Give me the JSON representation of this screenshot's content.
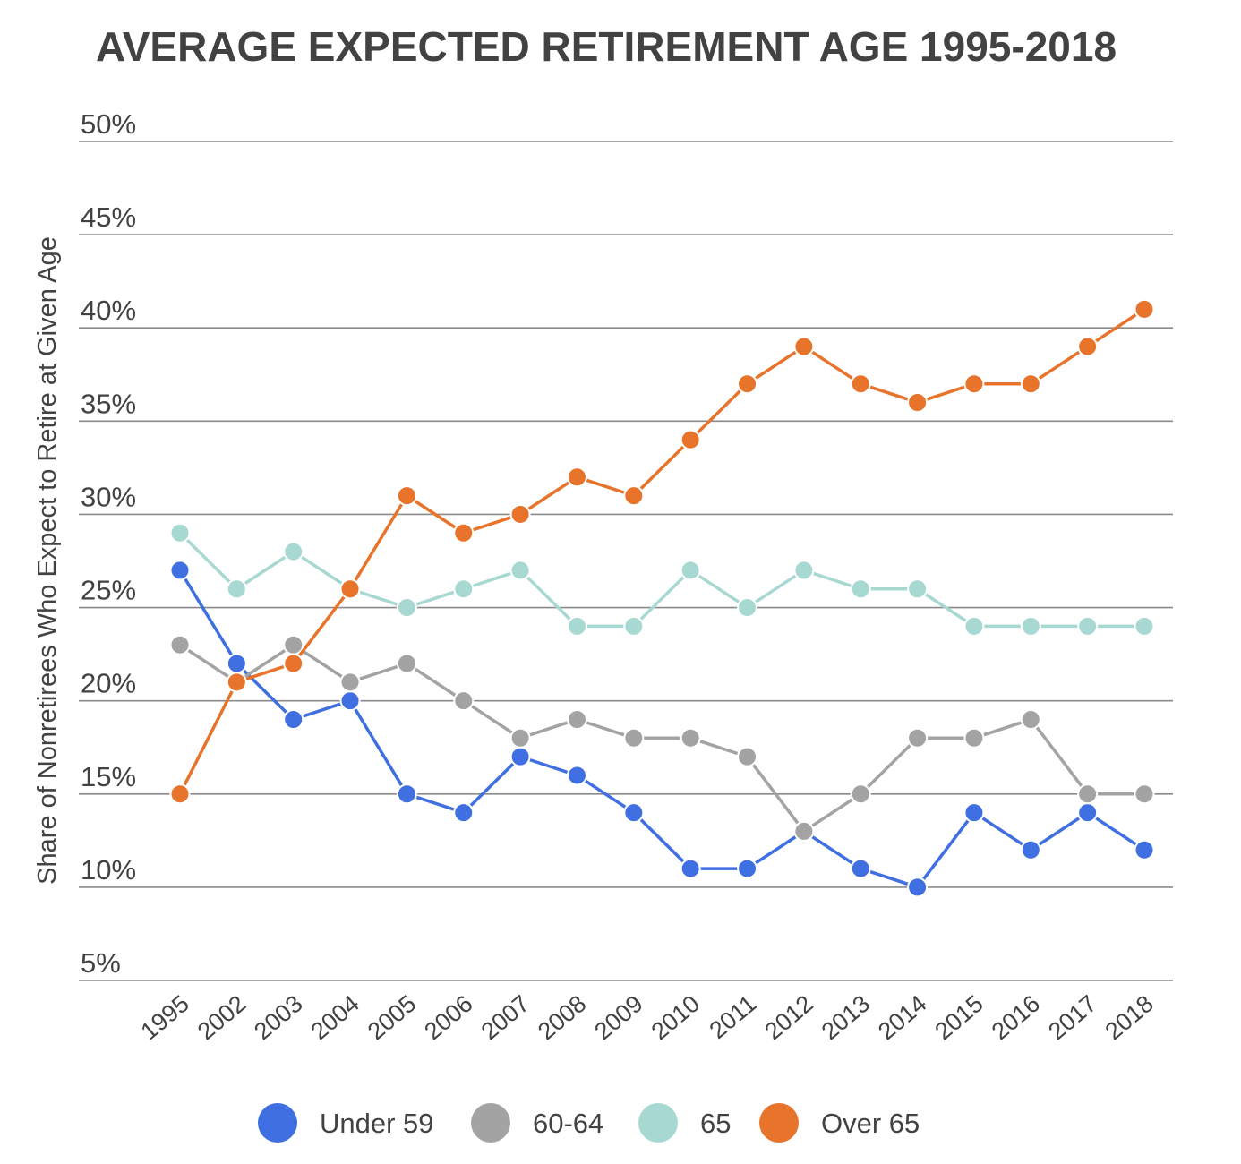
{
  "chart_data": {
    "type": "line",
    "title": "AVERAGE EXPECTED RETIREMENT AGE 1995-2018",
    "ylabel": "Share of Nonretirees Who Expect to Retire at Given Age",
    "xlabel": "",
    "ylim": [
      5,
      50
    ],
    "yticks": [
      "5%",
      "10%",
      "15%",
      "20%",
      "25%",
      "30%",
      "35%",
      "40%",
      "45%",
      "50%"
    ],
    "categories": [
      "1995",
      "2002",
      "2003",
      "2004",
      "2005",
      "2006",
      "2007",
      "2008",
      "2009",
      "2010",
      "2011",
      "2012",
      "2013",
      "2014",
      "2015",
      "2016",
      "2017",
      "2018"
    ],
    "grid": true,
    "legend_position": "bottom",
    "series": [
      {
        "name": "Under 59",
        "color": "#3f6fe0",
        "values": [
          27,
          22,
          19,
          20,
          15,
          14,
          17,
          16,
          14,
          11,
          11,
          13,
          11,
          10,
          14,
          12,
          14,
          12
        ]
      },
      {
        "name": "60-64",
        "color": "#a3a3a3",
        "values": [
          23,
          21,
          23,
          21,
          22,
          20,
          18,
          19,
          18,
          18,
          17,
          13,
          15,
          18,
          18,
          19,
          15,
          15
        ]
      },
      {
        "name": "65",
        "color": "#a8d8d2",
        "values": [
          29,
          26,
          28,
          26,
          25,
          26,
          27,
          24,
          24,
          27,
          25,
          27,
          26,
          26,
          24,
          24,
          24,
          24
        ]
      },
      {
        "name": "Over 65",
        "color": "#e8732a",
        "values": [
          15,
          21,
          22,
          26,
          31,
          29,
          30,
          32,
          31,
          34,
          37,
          39,
          37,
          36,
          37,
          37,
          39,
          41
        ]
      }
    ]
  }
}
